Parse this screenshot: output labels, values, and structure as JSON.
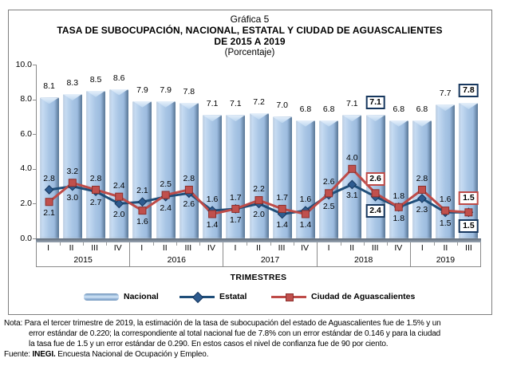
{
  "header": {
    "line1": "Gráfica 5",
    "line2": "TASA DE SUBOCUPACIÓN, NACIONAL, ESTATAL Y CIUDAD DE AGUASCALIENTES",
    "line3": "DE 2015 A 2019",
    "line4": "(Porcentaje)"
  },
  "chart_data": {
    "type": "bar",
    "title": "Gráfica 5",
    "subtitle": "TASA DE SUBOCUPACIÓN, NACIONAL, ESTATAL Y CIUDAD DE AGUASCALIENTES DE 2015 A 2019",
    "unit": "Porcentaje",
    "ylim": [
      0,
      10
    ],
    "y_ticks": [
      "0.0",
      "2.0",
      "4.0",
      "6.0",
      "8.0",
      "10.0"
    ],
    "x_axis_title": "TRIMESTRES",
    "grid": false,
    "legend_position": "bottom",
    "groups": [
      {
        "year": "2015",
        "quarters": [
          "I",
          "II",
          "III",
          "IV"
        ]
      },
      {
        "year": "2016",
        "quarters": [
          "I",
          "II",
          "III",
          "IV"
        ]
      },
      {
        "year": "2017",
        "quarters": [
          "I",
          "II",
          "III",
          "IV"
        ]
      },
      {
        "year": "2018",
        "quarters": [
          "I",
          "II",
          "III",
          "IV"
        ]
      },
      {
        "year": "2019",
        "quarters": [
          "I",
          "II",
          "III"
        ]
      }
    ],
    "series": [
      {
        "name": "Nacional",
        "type": "bar",
        "color": "#A9C6E5",
        "values": [
          8.1,
          8.3,
          8.5,
          8.6,
          7.9,
          7.9,
          7.8,
          7.1,
          7.1,
          7.2,
          7.0,
          6.8,
          6.8,
          7.1,
          7.1,
          6.8,
          6.8,
          7.7,
          7.8
        ]
      },
      {
        "name": "Estatal",
        "type": "line",
        "marker": "diamond",
        "color": "#1F4E79",
        "values": [
          2.8,
          3.0,
          2.7,
          2.0,
          2.1,
          2.4,
          2.6,
          1.6,
          1.7,
          2.0,
          1.4,
          1.6,
          2.5,
          3.1,
          2.4,
          1.8,
          2.3,
          1.5,
          1.5
        ]
      },
      {
        "name": "Ciudad de Aguascalientes",
        "type": "line",
        "marker": "square",
        "color": "#BE4B48",
        "values": [
          2.1,
          3.2,
          2.8,
          2.4,
          1.6,
          2.5,
          2.8,
          1.4,
          1.7,
          2.2,
          1.7,
          1.4,
          2.6,
          4.0,
          2.6,
          1.8,
          2.8,
          1.6,
          1.5
        ]
      }
    ],
    "highlighted_quarters": [
      "2018-III",
      "2019-III"
    ],
    "highlighted_indices": [
      14,
      18
    ],
    "highlight_box_colors": {
      "nacional": "#17375E",
      "estatal": "#17375E",
      "ciudad": "#BE4B48"
    }
  },
  "note": {
    "line1": "Nota: Para el tercer trimestre de 2019, la estimación de la tasa de subocupación del estado de Aguascalientes fue de 1.5% y un",
    "line2": "error estándar de 0.220; la correspondiente al total nacional fue de 7.8% con un error estándar de 0.146 y para la ciudad",
    "line3": "la tasa fue de 1.5 y un error estándar de 0.290. En estos casos el nivel de confianza fue de 90 por ciento.",
    "source_label": "Fuente: ",
    "source_bold": "INEGI.",
    "source_rest": " Encuesta Nacional de Ocupación y Empleo."
  }
}
